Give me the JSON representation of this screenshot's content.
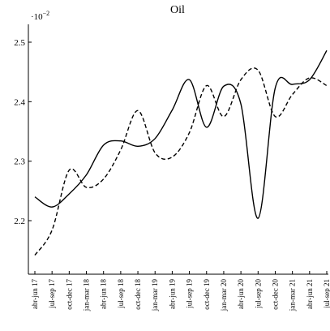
{
  "chart_data": {
    "type": "line",
    "title": "Oil",
    "y_scale_label": {
      "base": "·10",
      "exponent": "−2"
    },
    "categories": [
      "abr-jun 17",
      "jul-sep 17",
      "oct-dec 17",
      "jan-mar 18",
      "abr-jun 18",
      "jul-sep 18",
      "oct-dec 18",
      "jan-mar 19",
      "abr-jun 19",
      "jul-sep 19",
      "oct-dec 19",
      "jan-mar 20",
      "abr-jun 20",
      "jul-sep 20",
      "oct-dec 20",
      "jan-mar 21",
      "abr-jun 21",
      "jul-sep 21"
    ],
    "series": [
      {
        "color": "#000000",
        "dash": "solid",
        "values": [
          2.24,
          2.223,
          2.245,
          2.277,
          2.327,
          2.334,
          2.325,
          2.338,
          2.386,
          2.437,
          2.357,
          2.426,
          2.396,
          2.204,
          2.423,
          2.429,
          2.437,
          2.486
        ]
      },
      {
        "color": "#000000",
        "dash": "dashed",
        "values": [
          2.142,
          2.184,
          2.285,
          2.256,
          2.27,
          2.319,
          2.385,
          2.314,
          2.307,
          2.348,
          2.427,
          2.375,
          2.437,
          2.453,
          2.375,
          2.412,
          2.44,
          2.427
        ]
      }
    ],
    "ylim": [
      2.11,
      2.53
    ],
    "yticks": [
      2.2,
      2.3,
      2.4,
      2.5
    ]
  }
}
